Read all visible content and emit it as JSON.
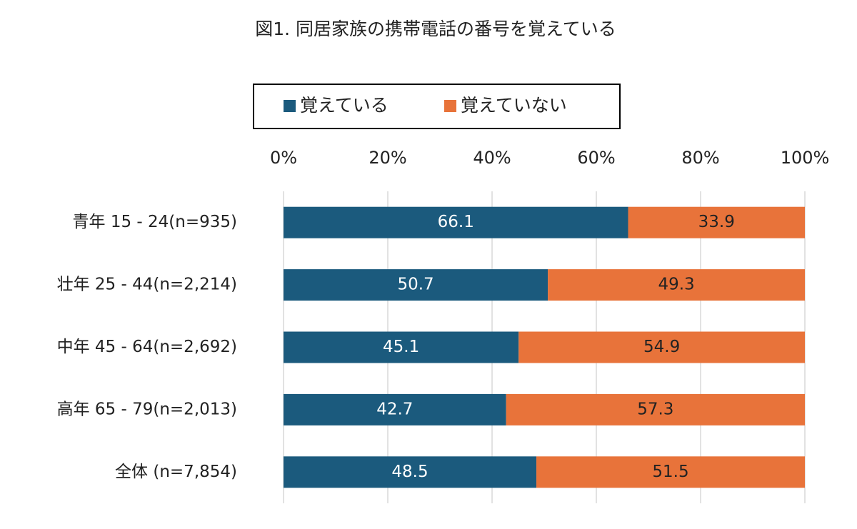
{
  "chart_data": {
    "type": "stacked-bar-horizontal",
    "title": "図1. 同居家族の携帯電話の番号を覚えている",
    "categories": [
      "青年 15 - 24(n=935)",
      "壮年 25 - 44(n=2,214)",
      "中年 45 - 64(n=2,692)",
      "高年 65 - 79(n=2,013)",
      "全体 (n=7,854)"
    ],
    "series": [
      {
        "name": "覚えている",
        "color": "#1b5a7d",
        "values": [
          66.1,
          50.7,
          45.1,
          42.7,
          48.5
        ]
      },
      {
        "name": "覚えていない",
        "color": "#e8733a",
        "values": [
          33.9,
          49.3,
          54.9,
          57.3,
          51.5
        ]
      }
    ],
    "xlim": [
      0,
      100
    ],
    "xticks": [
      {
        "value": 0,
        "label": "0%"
      },
      {
        "value": 20,
        "label": "20%"
      },
      {
        "value": 40,
        "label": "40%"
      },
      {
        "value": 60,
        "label": "60%"
      },
      {
        "value": 80,
        "label": "80%"
      },
      {
        "value": 100,
        "label": "100%"
      }
    ],
    "grid": true,
    "legend": "top"
  }
}
